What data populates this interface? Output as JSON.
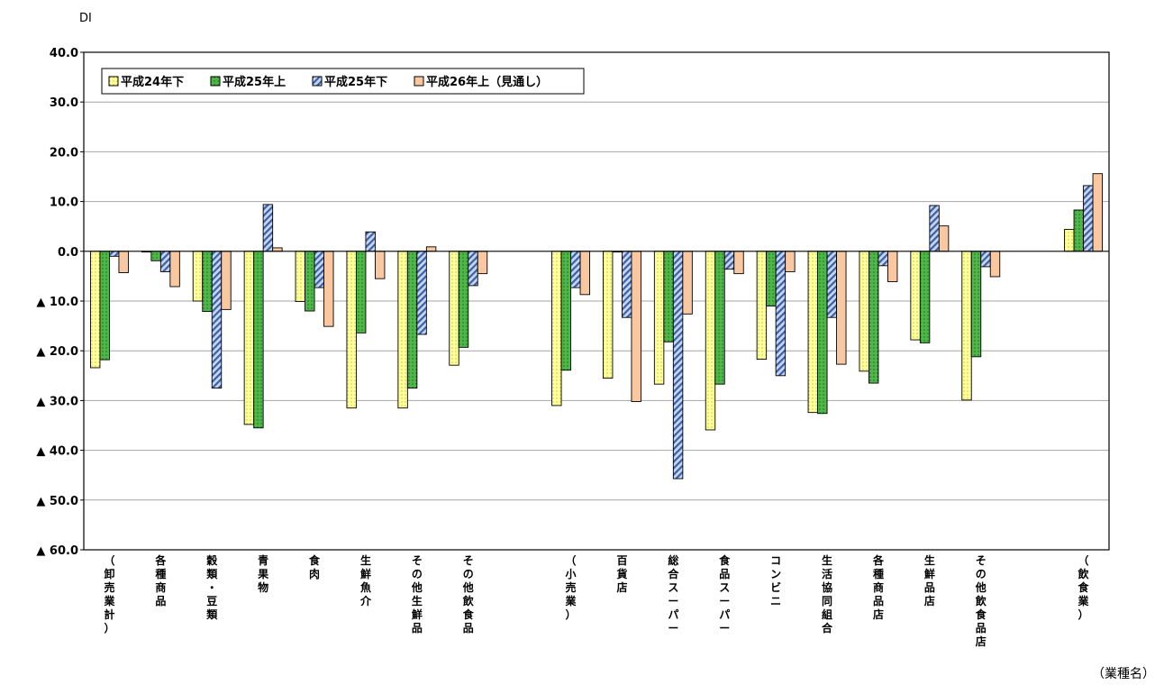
{
  "chart_data": {
    "type": "bar",
    "ylabel": "DI",
    "xlabel": "（業種名）",
    "ylim": [
      -60,
      40
    ],
    "y_ticks": [
      {
        "value": 40,
        "label": "40.0"
      },
      {
        "value": 30,
        "label": "30.0"
      },
      {
        "value": 20,
        "label": "20.0"
      },
      {
        "value": 10,
        "label": "10.0"
      },
      {
        "value": 0,
        "label": "0.0"
      },
      {
        "value": -10,
        "label": "▲ 10.0"
      },
      {
        "value": -20,
        "label": "▲ 20.0"
      },
      {
        "value": -30,
        "label": "▲ 30.0"
      },
      {
        "value": -40,
        "label": "▲ 40.0"
      },
      {
        "value": -50,
        "label": "▲ 50.0"
      },
      {
        "value": -60,
        "label": "▲ 60.0"
      }
    ],
    "grid": true,
    "legend_position": "top-left",
    "categories": [
      "（卸売業計）",
      "各種商品",
      "穀類・豆類",
      "青果物",
      "食肉",
      "生鮮魚介",
      "その他生鮮品",
      "その他飲食品",
      "",
      "（小売業）",
      "百貨店",
      "総合スーパー",
      "食品スーパー",
      "コンビニ",
      "生活協同組合",
      "各種商品店",
      "生鮮品店",
      "その他飲食品店",
      "",
      "（飲食業）"
    ],
    "series": [
      {
        "name": "平成24年下",
        "color": "#ffff99",
        "pattern": "dots",
        "values": [
          -23.4,
          0,
          -10.0,
          -34.8,
          -10.1,
          -31.5,
          -31.5,
          -22.9,
          null,
          -31.0,
          -25.5,
          -26.7,
          -35.9,
          -21.7,
          -32.4,
          -24.1,
          -17.8,
          -29.9,
          null,
          4.4
        ]
      },
      {
        "name": "平成25年上",
        "color": "#4db848",
        "pattern": "dots",
        "values": [
          -21.8,
          -1.9,
          -12.1,
          -35.5,
          -12.0,
          -16.4,
          -27.5,
          -19.3,
          null,
          -23.9,
          0,
          -18.2,
          -26.7,
          -11.0,
          -32.6,
          -26.5,
          -18.4,
          -21.2,
          null,
          8.3
        ]
      },
      {
        "name": "平成25年下",
        "color": "#9bb7e5",
        "pattern": "hatch",
        "values": [
          -1.0,
          -4.1,
          -27.5,
          9.4,
          -7.3,
          3.9,
          -16.7,
          -6.9,
          null,
          -7.3,
          -13.3,
          -45.7,
          -3.6,
          -25.0,
          -13.3,
          -2.9,
          9.2,
          -3.1,
          null,
          13.2
        ]
      },
      {
        "name": "平成26年上（見通し）",
        "color": "#fac8a0",
        "pattern": "solid",
        "values": [
          -4.3,
          -7.1,
          -11.7,
          0.7,
          -15.1,
          -5.5,
          0.9,
          -4.5,
          null,
          -8.7,
          -30.2,
          -12.6,
          -4.5,
          -4.1,
          -22.7,
          -6.1,
          5.1,
          -5.1,
          null,
          15.6
        ]
      }
    ]
  }
}
